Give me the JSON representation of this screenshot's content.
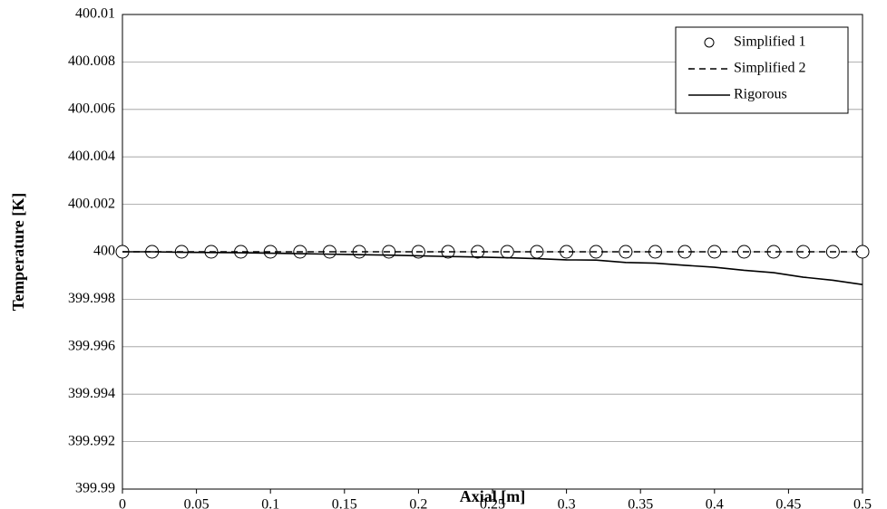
{
  "chart_data": {
    "type": "line",
    "x_label": "Axial [m]",
    "y_label": "Temperature [K]",
    "x": [
      0,
      0.02,
      0.04,
      0.06,
      0.08,
      0.1,
      0.12,
      0.14,
      0.16,
      0.18,
      0.2,
      0.22,
      0.24,
      0.26,
      0.28,
      0.3,
      0.32,
      0.34,
      0.36,
      0.38,
      0.4,
      0.42,
      0.44,
      0.46,
      0.48,
      0.5
    ],
    "series": [
      {
        "name": "Simplified 1",
        "color": "#000000",
        "marker": "circle",
        "line_style": "none",
        "values": [
          400,
          400,
          400,
          400,
          400,
          400,
          400,
          400,
          400,
          400,
          400,
          400,
          400,
          400,
          400,
          400,
          400,
          400,
          400,
          400,
          400,
          400,
          400,
          400,
          400,
          400
        ]
      },
      {
        "name": "Simplified 2",
        "color": "#000000",
        "marker": "none",
        "line_style": "dashed",
        "values": [
          400,
          400,
          400,
          400,
          400,
          400,
          400,
          400,
          400,
          400,
          400,
          400,
          400,
          400,
          400,
          400,
          400,
          400,
          400,
          400,
          400,
          400,
          400,
          400,
          400,
          400
        ]
      },
      {
        "name": "Rigorous",
        "color": "#000000",
        "marker": "none",
        "line_style": "solid",
        "values": [
          400,
          400,
          399.99998,
          399.99997,
          399.99996,
          399.99994,
          399.99992,
          399.9999,
          399.99988,
          399.99986,
          399.99983,
          399.9998,
          399.99978,
          399.99975,
          399.99971,
          399.99966,
          399.99965,
          399.99955,
          399.99952,
          399.99943,
          399.99935,
          399.99922,
          399.99912,
          399.99893,
          399.9988,
          399.99862
        ]
      }
    ],
    "xlim": [
      0,
      0.5
    ],
    "xticks": [
      0,
      0.05,
      0.1,
      0.15,
      0.2,
      0.25,
      0.3,
      0.35,
      0.4,
      0.45,
      0.5
    ],
    "ylim": [
      399.99,
      400.01
    ],
    "yticks": [
      399.99,
      399.992,
      399.994,
      399.996,
      399.998,
      400,
      400.002,
      400.004,
      400.006,
      400.008,
      400.01
    ],
    "grid": true,
    "legend": "upper right"
  }
}
